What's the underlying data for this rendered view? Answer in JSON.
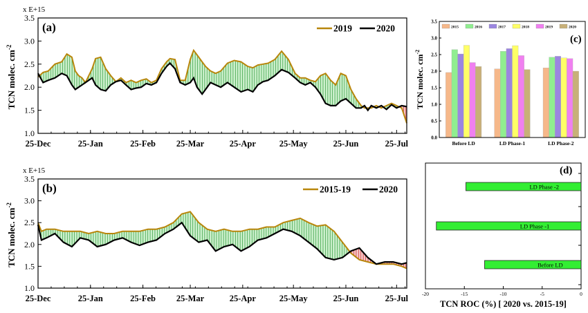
{
  "chart_data": [
    {
      "id": "a",
      "type": "line",
      "panel_label": "(a)",
      "multiplier_label": "x E+15",
      "ylabel": "TCN molec. cm",
      "ylabel_sup": "-2",
      "ylim": [
        1.0,
        3.5
      ],
      "yticks": [
        "1.0",
        "1.5",
        "2.0",
        "2.5",
        "3.0",
        "3.5"
      ],
      "xtick_labels": [
        "25-Dec",
        "25-Jan",
        "25-Feb",
        "25-Mar",
        "25-Apr",
        "25-May",
        "25-Jun",
        "25-Jul"
      ],
      "xlim": [
        0,
        218
      ],
      "xticks": [
        0,
        31,
        62,
        90,
        121,
        151,
        182,
        212
      ],
      "legend": "top-right",
      "fill_colors": {
        "positive": "#2e9a3a",
        "negative": "#cc2020",
        "positive_bg": "#c9efc9",
        "negative_bg": "#f3c6c6"
      },
      "series": [
        {
          "name": "2019",
          "color": "#b8860b",
          "x": [
            0,
            3,
            6,
            10,
            14,
            17,
            20,
            22,
            24,
            26,
            28,
            32,
            34,
            37,
            40,
            43,
            46,
            49,
            52,
            55,
            58,
            61,
            64,
            67,
            70,
            73,
            76,
            78,
            81,
            84,
            87,
            90,
            92,
            94,
            97,
            99,
            102,
            105,
            108,
            112,
            116,
            120,
            124,
            127,
            130,
            133,
            136,
            140,
            144,
            148,
            152,
            155,
            158,
            161,
            164,
            167,
            170,
            173,
            176,
            179,
            182,
            185,
            188,
            191,
            193,
            195,
            197,
            200,
            203,
            206,
            209,
            212,
            215,
            218
          ],
          "y": [
            2.22,
            2.32,
            2.35,
            2.5,
            2.55,
            2.72,
            2.65,
            2.35,
            2.25,
            2.2,
            2.1,
            2.4,
            2.62,
            2.65,
            2.4,
            2.25,
            2.12,
            2.2,
            2.1,
            2.15,
            2.1,
            2.15,
            2.18,
            2.1,
            2.15,
            2.4,
            2.55,
            2.62,
            2.6,
            2.15,
            2.15,
            2.6,
            2.8,
            2.7,
            2.55,
            2.45,
            2.35,
            2.3,
            2.35,
            2.52,
            2.58,
            2.55,
            2.45,
            2.42,
            2.48,
            2.5,
            2.52,
            2.6,
            2.78,
            2.6,
            2.3,
            2.2,
            2.2,
            2.15,
            2.12,
            2.25,
            2.3,
            2.15,
            2.05,
            2.3,
            2.25,
            1.95,
            1.75,
            1.6,
            1.55,
            1.55,
            1.55,
            1.6,
            1.55,
            1.6,
            1.65,
            1.6,
            1.55,
            1.22
          ]
        },
        {
          "name": "2020",
          "color": "#000000",
          "x": [
            0,
            3,
            6,
            10,
            14,
            17,
            20,
            22,
            24,
            26,
            28,
            32,
            34,
            37,
            40,
            43,
            46,
            49,
            52,
            55,
            58,
            61,
            64,
            67,
            70,
            73,
            76,
            78,
            81,
            84,
            87,
            90,
            92,
            94,
            97,
            99,
            102,
            105,
            108,
            112,
            116,
            120,
            124,
            127,
            130,
            133,
            136,
            140,
            144,
            148,
            152,
            155,
            158,
            161,
            164,
            167,
            170,
            173,
            176,
            179,
            182,
            185,
            188,
            191,
            193,
            195,
            197,
            200,
            203,
            206,
            209,
            212,
            215,
            218
          ],
          "y": [
            2.3,
            2.1,
            2.15,
            2.2,
            2.3,
            2.25,
            2.05,
            1.95,
            2.0,
            2.05,
            2.1,
            2.2,
            2.05,
            1.95,
            1.92,
            2.05,
            2.12,
            2.15,
            2.05,
            1.95,
            1.98,
            2.0,
            2.08,
            2.05,
            2.1,
            2.3,
            2.45,
            2.52,
            2.4,
            2.1,
            2.05,
            2.1,
            2.2,
            2.0,
            1.85,
            1.95,
            2.1,
            2.05,
            2.0,
            2.1,
            2.0,
            1.9,
            1.95,
            1.9,
            2.05,
            2.12,
            2.15,
            2.25,
            2.38,
            2.32,
            2.2,
            2.1,
            2.05,
            2.1,
            2.0,
            1.85,
            1.65,
            1.6,
            1.6,
            1.7,
            1.75,
            1.65,
            1.55,
            1.55,
            1.6,
            1.5,
            1.6,
            1.55,
            1.6,
            1.52,
            1.62,
            1.55,
            1.6,
            1.58
          ]
        }
      ]
    },
    {
      "id": "b",
      "type": "line",
      "panel_label": "(b)",
      "multiplier_label": "x E+15",
      "ylabel": "TCN molec. cm",
      "ylabel_sup": "-2",
      "ylim": [
        1.0,
        3.5
      ],
      "yticks": [
        "1.0",
        "1.5",
        "2.0",
        "2.5",
        "3.0",
        "3.5"
      ],
      "xtick_labels": [
        "25-Dec",
        "25-Jan",
        "25-Feb",
        "25-Mar",
        "25-Apr",
        "25-May",
        "25-Jun",
        "25-Jul"
      ],
      "xlim": [
        0,
        218
      ],
      "xticks": [
        0,
        31,
        62,
        90,
        121,
        151,
        182,
        212
      ],
      "legend": "top-right",
      "fill_colors": {
        "positive": "#2e9a3a",
        "negative": "#cc2020",
        "positive_bg": "#c9efc9",
        "negative_bg": "#f3c6c6"
      },
      "series": [
        {
          "name": "2015-19",
          "color": "#b8860b",
          "x": [
            0,
            2,
            5,
            10,
            15,
            20,
            25,
            30,
            35,
            40,
            45,
            50,
            55,
            60,
            65,
            70,
            75,
            80,
            85,
            90,
            95,
            100,
            105,
            110,
            115,
            120,
            125,
            130,
            135,
            140,
            145,
            150,
            155,
            160,
            165,
            170,
            175,
            180,
            185,
            190,
            195,
            200,
            205,
            210,
            215,
            218
          ],
          "y": [
            2.5,
            2.3,
            2.35,
            2.35,
            2.3,
            2.3,
            2.3,
            2.25,
            2.3,
            2.25,
            2.25,
            2.3,
            2.3,
            2.3,
            2.35,
            2.35,
            2.4,
            2.5,
            2.7,
            2.75,
            2.5,
            2.35,
            2.3,
            2.35,
            2.3,
            2.3,
            2.35,
            2.35,
            2.4,
            2.4,
            2.5,
            2.55,
            2.6,
            2.5,
            2.42,
            2.45,
            2.3,
            2.05,
            1.8,
            1.65,
            1.6,
            1.55,
            1.55,
            1.55,
            1.5,
            1.45
          ]
        },
        {
          "name": "2020",
          "color": "#000000",
          "x": [
            0,
            2,
            5,
            10,
            15,
            20,
            25,
            30,
            35,
            40,
            45,
            50,
            55,
            60,
            65,
            70,
            75,
            80,
            85,
            90,
            95,
            100,
            105,
            110,
            115,
            120,
            125,
            130,
            135,
            140,
            145,
            150,
            155,
            160,
            165,
            170,
            175,
            180,
            185,
            190,
            195,
            200,
            205,
            210,
            215,
            218
          ],
          "y": [
            2.45,
            2.1,
            2.15,
            2.25,
            2.05,
            1.95,
            2.15,
            2.1,
            1.95,
            2.0,
            2.1,
            2.15,
            2.05,
            1.98,
            2.05,
            2.1,
            2.25,
            2.35,
            2.5,
            2.2,
            2.05,
            2.1,
            1.85,
            1.95,
            2.0,
            1.85,
            1.95,
            2.1,
            2.15,
            2.25,
            2.35,
            2.3,
            2.2,
            2.05,
            1.9,
            1.7,
            1.65,
            1.7,
            1.85,
            1.92,
            1.7,
            1.55,
            1.6,
            1.6,
            1.55,
            1.58
          ]
        }
      ]
    },
    {
      "id": "c",
      "type": "bar",
      "panel_label": "(c)",
      "ylabel": "TCN molec. cm",
      "ylabel_sup": "-2",
      "ylim": [
        0.0,
        3.5
      ],
      "yticks": [
        "0.0",
        "0.5",
        "1.0",
        "1.5",
        "2.0",
        "2.5",
        "3.0",
        "3.5"
      ],
      "categories": [
        "Before LD",
        "LD Phase-1",
        "LD Phase-2"
      ],
      "legend": "top",
      "series": [
        {
          "name": "2015",
          "color": "#f6b88a",
          "values": [
            1.96,
            2.07,
            2.1
          ]
        },
        {
          "name": "2016",
          "color": "#90ee90",
          "values": [
            2.65,
            2.6,
            2.42
          ]
        },
        {
          "name": "2017",
          "color": "#9b86e0",
          "values": [
            2.52,
            2.68,
            2.45
          ]
        },
        {
          "name": "2018",
          "color": "#ffff66",
          "values": [
            2.78,
            2.77,
            2.4
          ]
        },
        {
          "name": "2019",
          "color": "#f080f0",
          "values": [
            2.26,
            2.47,
            2.38
          ]
        },
        {
          "name": "2020",
          "color": "#c8b078",
          "values": [
            2.14,
            2.05,
            2.0
          ]
        }
      ]
    },
    {
      "id": "d",
      "type": "bar",
      "orientation": "horizontal",
      "panel_label": "(d)",
      "xlabel": "TCN ROC (%) [ 2020 vs. 2015-19]",
      "xlim": [
        -20,
        0
      ],
      "xticks": [
        "-20",
        "-15",
        "-10",
        "-5",
        "0"
      ],
      "color": "#33ee33",
      "categories": [
        "Before LD",
        "LD  Phase -1",
        "LD  Phase -2"
      ],
      "values": [
        -12.4,
        -18.6,
        -14.8
      ]
    }
  ]
}
